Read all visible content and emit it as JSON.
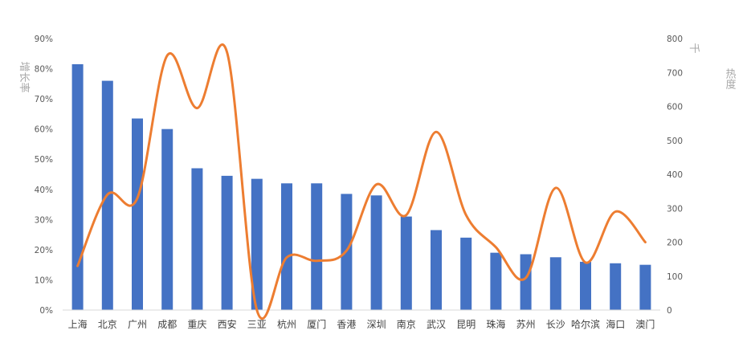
{
  "chart_data": {
    "type": "bar",
    "categories": [
      "上海",
      "北京",
      "广州",
      "成都",
      "重庆",
      "西安",
      "三亚",
      "杭州",
      "厦门",
      "香港",
      "深圳",
      "南京",
      "武汉",
      "昆明",
      "珠海",
      "苏州",
      "长沙",
      "哈尔滨",
      "海口",
      "澳门"
    ],
    "series": [
      {
        "name": "增长率",
        "type": "bar",
        "axis": "left",
        "color": "#4472c4",
        "values": [
          0.815,
          0.76,
          0.635,
          0.6,
          0.47,
          0.445,
          0.435,
          0.42,
          0.42,
          0.385,
          0.38,
          0.31,
          0.265,
          0.24,
          0.19,
          0.185,
          0.175,
          0.16,
          0.155,
          0.15
        ]
      },
      {
        "name": "热度",
        "type": "line",
        "axis": "right",
        "color": "#ed7d31",
        "smooth": true,
        "values": [
          130,
          340,
          330,
          750,
          595,
          760,
          0,
          155,
          145,
          175,
          370,
          280,
          525,
          280,
          185,
          95,
          360,
          140,
          290,
          200
        ]
      }
    ],
    "y_left": {
      "label": "增长率",
      "min": 0,
      "max": 0.9,
      "ticks": [
        "0%",
        "10%",
        "20%",
        "30%",
        "40%",
        "50%",
        "60%",
        "70%",
        "80%",
        "90%"
      ]
    },
    "y_right": {
      "label": "热度",
      "unit": "千",
      "min": 0,
      "max": 800,
      "ticks": [
        "0",
        "100",
        "200",
        "300",
        "400",
        "500",
        "600",
        "700",
        "800"
      ]
    },
    "grid": false,
    "legend": "none"
  }
}
